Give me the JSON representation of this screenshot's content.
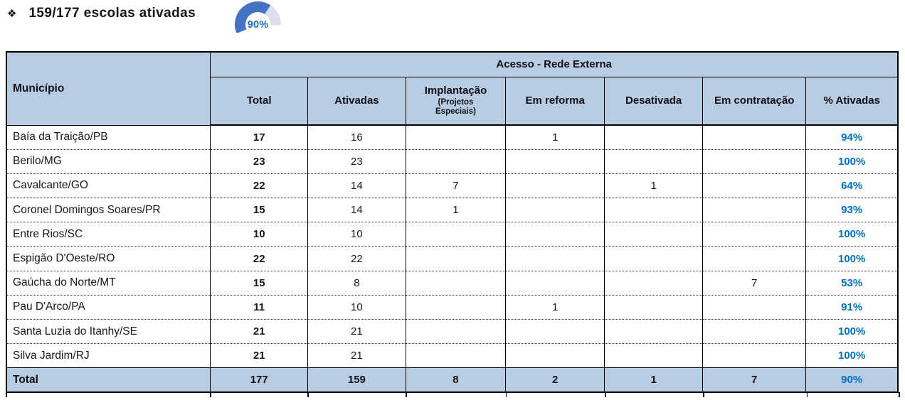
{
  "title": {
    "bullet": "❖",
    "text": "159/177 escolas ativadas",
    "gauge": {
      "label": "90%",
      "percent": 90
    }
  },
  "table": {
    "group_header": "Acesso - Rede Externa",
    "headers": {
      "municipio": "Município",
      "total": "Total",
      "ativadas": "Ativadas",
      "implantacao_main": "Implantação",
      "implantacao_sub": "(Projetos Especiais)",
      "em_reforma": "Em reforma",
      "desativada": "Desativada",
      "em_contratacao": "Em contratação",
      "pct": "% Ativadas"
    },
    "rows": [
      {
        "municipio": "Baía da Traição/PB",
        "total": "17",
        "ativadas": "16",
        "implantacao": "",
        "em_reforma": "1",
        "desativada": "",
        "em_contratacao": "",
        "pct": "94%"
      },
      {
        "municipio": "Berilo/MG",
        "total": "23",
        "ativadas": "23",
        "implantacao": "",
        "em_reforma": "",
        "desativada": "",
        "em_contratacao": "",
        "pct": "100%"
      },
      {
        "municipio": "Cavalcante/GO",
        "total": "22",
        "ativadas": "14",
        "implantacao": "7",
        "em_reforma": "",
        "desativada": "1",
        "em_contratacao": "",
        "pct": "64%"
      },
      {
        "municipio": "Coronel Domingos Soares/PR",
        "total": "15",
        "ativadas": "14",
        "implantacao": "1",
        "em_reforma": "",
        "desativada": "",
        "em_contratacao": "",
        "pct": "93%"
      },
      {
        "municipio": "Entre Rios/SC",
        "total": "10",
        "ativadas": "10",
        "implantacao": "",
        "em_reforma": "",
        "desativada": "",
        "em_contratacao": "",
        "pct": "100%"
      },
      {
        "municipio": "Espigão D'Oeste/RO",
        "total": "22",
        "ativadas": "22",
        "implantacao": "",
        "em_reforma": "",
        "desativada": "",
        "em_contratacao": "",
        "pct": "100%"
      },
      {
        "municipio": "Gaúcha do Norte/MT",
        "total": "15",
        "ativadas": "8",
        "implantacao": "",
        "em_reforma": "",
        "desativada": "",
        "em_contratacao": "7",
        "pct": "53%"
      },
      {
        "municipio": "Pau D'Arco/PA",
        "total": "11",
        "ativadas": "10",
        "implantacao": "",
        "em_reforma": "1",
        "desativada": "",
        "em_contratacao": "",
        "pct": "91%"
      },
      {
        "municipio": "Santa Luzia do Itanhy/SE",
        "total": "21",
        "ativadas": "21",
        "implantacao": "",
        "em_reforma": "",
        "desativada": "",
        "em_contratacao": "",
        "pct": "100%"
      },
      {
        "municipio": "Silva Jardim/RJ",
        "total": "21",
        "ativadas": "21",
        "implantacao": "",
        "em_reforma": "",
        "desativada": "",
        "em_contratacao": "",
        "pct": "100%"
      }
    ],
    "total_row": {
      "municipio": "Total",
      "total": "177",
      "ativadas": "159",
      "implantacao": "8",
      "em_reforma": "2",
      "desativada": "1",
      "em_contratacao": "7",
      "pct": "90%"
    }
  },
  "colors": {
    "header_fill": "#b8cce4",
    "accent_blue": "#0070c0",
    "gauge_blue": "#4472c4",
    "gauge_gray": "#dbe0ea",
    "gauge_text": "#1f6fc5"
  }
}
